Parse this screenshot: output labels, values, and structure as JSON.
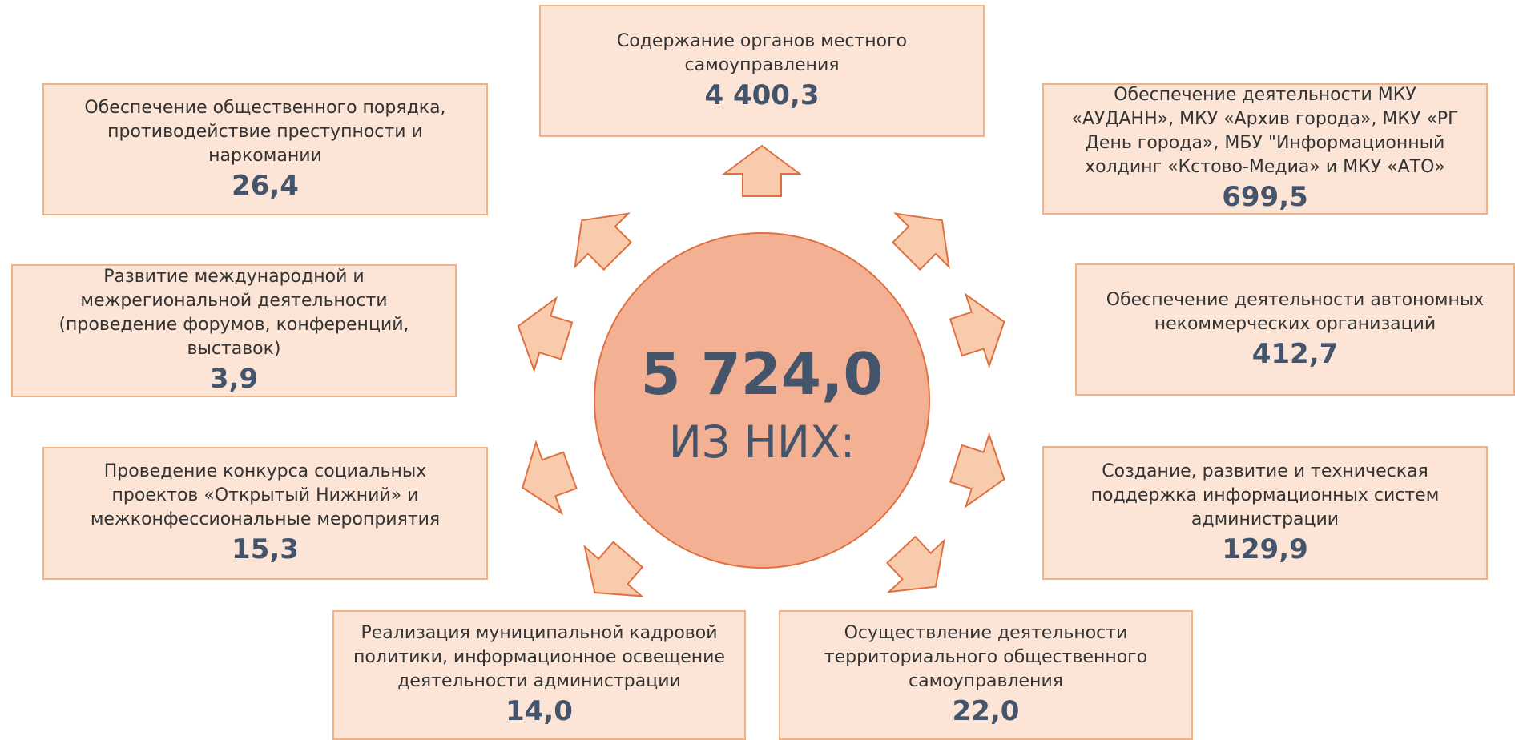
{
  "center": {
    "total": "5 724,0",
    "caption": "ИЗ НИХ:"
  },
  "boxes": [
    {
      "lines": [
        "Содержание органов местного",
        "самоуправления"
      ],
      "value": "4 400,3"
    },
    {
      "lines": [
        "Обеспечение общественного порядка,",
        "противодействие преступности и",
        "наркомании"
      ],
      "value": "26,4"
    },
    {
      "lines": [
        "Обеспечение деятельности МКУ",
        "«АУДАНН», МКУ «Архив города», МКУ «РГ",
        "День города», МБУ \"Информационный",
        "холдинг «Кстово-Медиа» и МКУ «АТО»"
      ],
      "value": "699,5"
    },
    {
      "lines": [
        "Развитие международной и",
        "межрегиональной деятельности",
        "(проведение форумов, конференций,",
        "выставок)"
      ],
      "value": "3,9"
    },
    {
      "lines": [
        "Обеспечение деятельности автономных",
        "некоммерческих организаций"
      ],
      "value": "412,7"
    },
    {
      "lines": [
        "Проведение конкурса социальных",
        "проектов «Открытый Нижний» и",
        "межконфессиональные мероприятия"
      ],
      "value": "15,3"
    },
    {
      "lines": [
        "Создание, развитие и техническая",
        "поддержка информационных систем",
        "администрации"
      ],
      "value": "129,9"
    },
    {
      "lines": [
        "Реализация муниципальной кадровой",
        "политики, информационное освещение",
        "деятельности администрации"
      ],
      "value": "14,0"
    },
    {
      "lines": [
        "Осуществление деятельности",
        "территориального общественного",
        "самоуправления"
      ],
      "value": "22,0"
    }
  ]
}
